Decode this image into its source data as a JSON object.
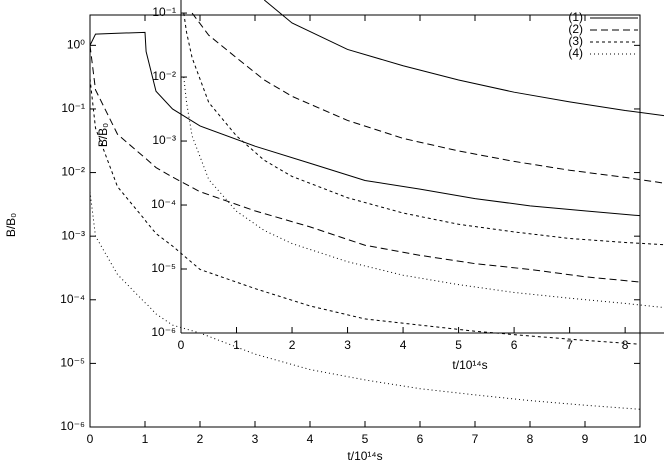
{
  "chart_data": [
    {
      "type": "line",
      "role": "main",
      "xlabel": "t/10¹⁴s",
      "ylabel": "B/B₀",
      "log_y": true,
      "grid": false,
      "x": [
        0,
        0.1,
        0.5,
        1,
        1.02,
        1.2,
        1.5,
        2,
        3,
        4,
        5,
        6,
        7,
        8,
        9,
        10
      ],
      "xlim": [
        0,
        10
      ],
      "ylim": [
        1e-06,
        3
      ],
      "xticks": [
        0,
        1,
        2,
        3,
        4,
        5,
        6,
        7,
        8,
        9,
        10
      ],
      "yticks": [
        {
          "value": 1e-06,
          "label": "10⁻⁶"
        },
        {
          "value": 1e-05,
          "label": "10⁻⁵"
        },
        {
          "value": 0.0001,
          "label": "10⁻⁴"
        },
        {
          "value": 0.001,
          "label": "10⁻³"
        },
        {
          "value": 0.01,
          "label": "10⁻²"
        },
        {
          "value": 0.1,
          "label": "10⁻¹"
        },
        {
          "value": 1,
          "label": "10⁰"
        }
      ],
      "series": [
        {
          "name": "(1)",
          "color": "#000000",
          "linestyle": "solid",
          "values": [
            1.0,
            1.5,
            1.55,
            1.6,
            0.8,
            0.19,
            0.1,
            0.054,
            0.026,
            0.014,
            0.0075,
            0.0055,
            0.0039,
            0.003,
            0.0025,
            0.0021
          ]
        },
        {
          "name": "(2)",
          "color": "#000000",
          "linestyle": "dashed",
          "values": [
            1.0,
            0.2,
            0.04,
            0.017,
            0.0165,
            0.012,
            0.0085,
            0.005,
            0.0025,
            0.0014,
            0.00072,
            0.0005,
            0.00037,
            0.0003,
            0.00023,
            0.00019
          ]
        },
        {
          "name": "(3)",
          "color": "#000000",
          "linestyle": "short-dashed",
          "values": [
            0.3,
            0.05,
            0.006,
            0.0018,
            0.0017,
            0.0011,
            0.0007,
            0.0003,
            0.00015,
            8e-05,
            5e-05,
            4e-05,
            3.2e-05,
            2.7e-05,
            2.3e-05,
            2e-05
          ]
        },
        {
          "name": "(4)",
          "color": "#000000",
          "linestyle": "dotted",
          "values": [
            0.005,
            0.001,
            0.00025,
            9e-05,
            8.8e-05,
            6e-05,
            4e-05,
            3e-05,
            1.4e-05,
            8e-06,
            5.5e-06,
            4e-06,
            3.2e-06,
            2.6e-06,
            2.2e-06,
            1.9e-06
          ]
        }
      ]
    },
    {
      "type": "line",
      "role": "inset",
      "xlabel": "t/10¹⁴s",
      "ylabel": "B/B₀",
      "log_y": true,
      "grid": false,
      "legend": "top-right",
      "x": [
        0.05,
        0.1,
        0.2,
        0.5,
        1,
        1.5,
        2,
        3,
        4,
        5,
        6,
        7,
        8,
        8.7
      ],
      "xlim": [
        0,
        8.7
      ],
      "ylim": [
        1e-06,
        0.16
      ],
      "xticks": [
        0,
        1,
        2,
        3,
        4,
        5,
        6,
        7,
        8
      ],
      "yticks": [
        {
          "value": 1e-06,
          "label": "10⁻⁶"
        },
        {
          "value": 1e-05,
          "label": "10⁻⁵"
        },
        {
          "value": 0.0001,
          "label": "10⁻⁴"
        },
        {
          "value": 0.001,
          "label": "10⁻³"
        },
        {
          "value": 0.01,
          "label": "10⁻²"
        },
        {
          "value": 0.1,
          "label": "10⁻¹"
        }
      ],
      "series": [
        {
          "name": "(1)",
          "color": "#000000",
          "linestyle": "solid",
          "values": [
            null,
            null,
            null,
            null,
            null,
            0.16,
            0.07,
            0.027,
            0.015,
            0.009,
            0.0058,
            0.0041,
            0.003,
            0.0025
          ]
        },
        {
          "name": "(2)",
          "color": "#000000",
          "linestyle": "dashed",
          "values": [
            null,
            null,
            0.1,
            0.045,
            0.02,
            0.009,
            0.005,
            0.0021,
            0.0011,
            0.0007,
            0.00048,
            0.00035,
            0.00027,
            0.00022
          ]
        },
        {
          "name": "(3)",
          "color": "#000000",
          "linestyle": "short-dashed",
          "values": [
            0.1,
            0.05,
            0.02,
            0.004,
            0.0012,
            0.0005,
            0.00028,
            0.00013,
            7.5e-05,
            5e-05,
            3.8e-05,
            3e-05,
            2.6e-05,
            2.4e-05
          ]
        },
        {
          "name": "(4)",
          "color": "#000000",
          "linestyle": "dotted",
          "values": [
            0.01,
            0.004,
            0.0012,
            0.00025,
            8e-05,
            4e-05,
            2.5e-05,
            1.3e-05,
            8e-06,
            5.7e-06,
            4.3e-06,
            3.5e-06,
            2.9e-06,
            2.5e-06
          ]
        }
      ]
    }
  ]
}
